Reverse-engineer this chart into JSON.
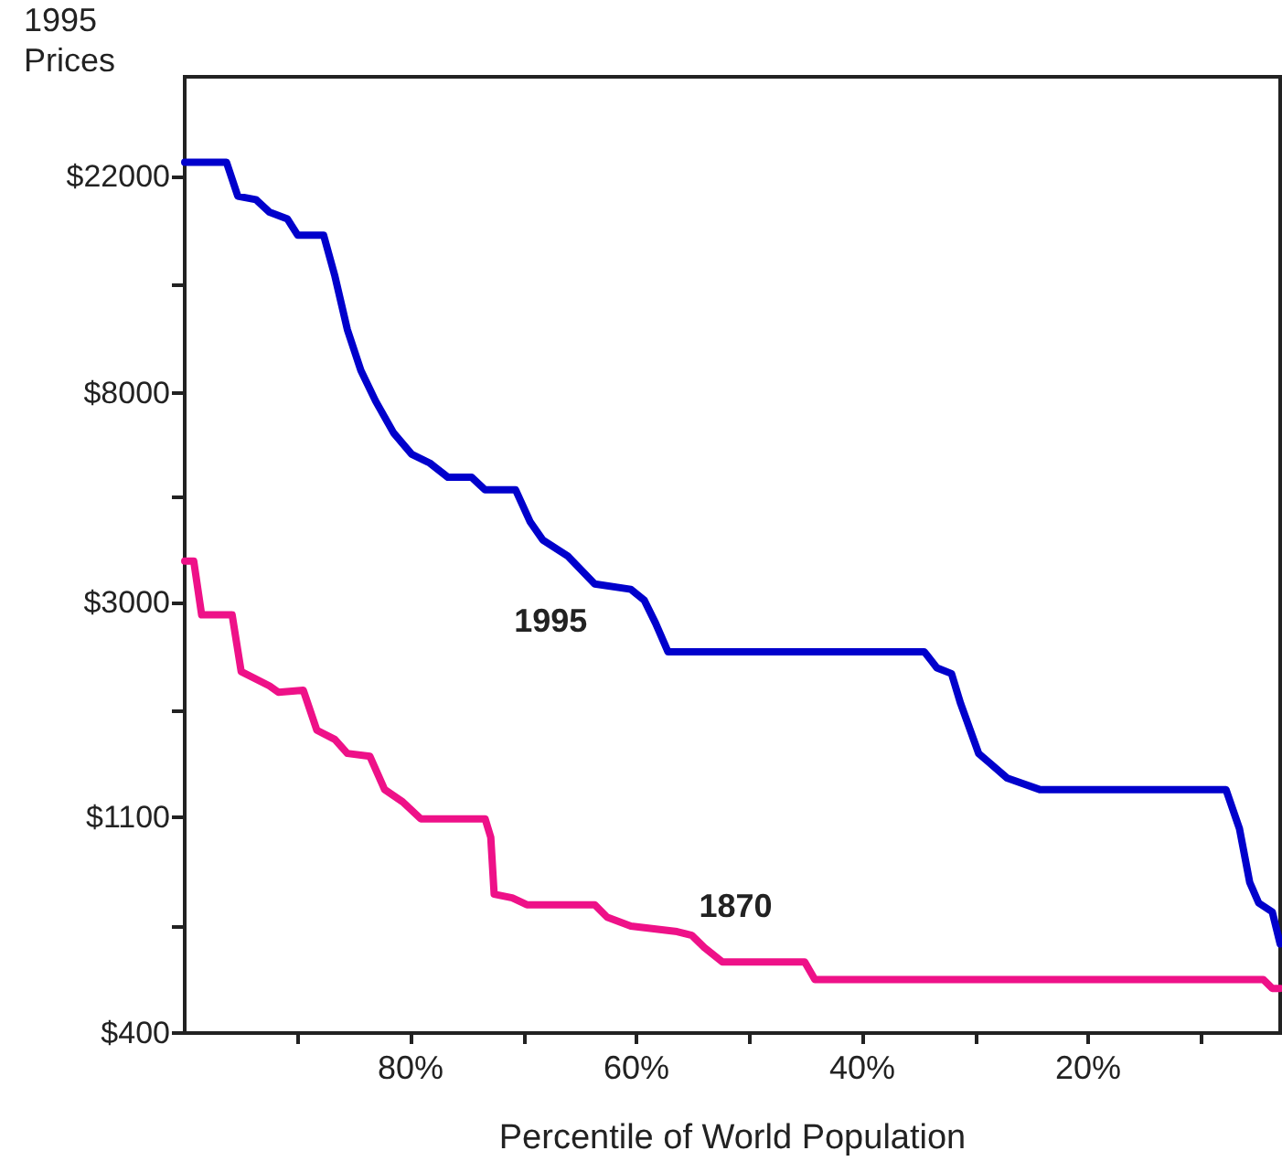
{
  "chart_data": {
    "type": "line",
    "xlabel": "Percentile of World Population",
    "ylabel": "1995\nPrices",
    "log": "y",
    "grid": false,
    "legend": false,
    "marker": "none",
    "line_style": "solid",
    "xlim": [
      100,
      3
    ],
    "ylim": [
      400,
      35100
    ],
    "xticks": [
      {
        "value": 90,
        "label": null
      },
      {
        "value": 80,
        "label": "80%"
      },
      {
        "value": 70,
        "label": null
      },
      {
        "value": 60,
        "label": "60%"
      },
      {
        "value": 50,
        "label": null
      },
      {
        "value": 40,
        "label": "40%"
      },
      {
        "value": 30,
        "label": null
      },
      {
        "value": 20,
        "label": "20%"
      },
      {
        "value": 10,
        "label": null
      }
    ],
    "yticks": [
      {
        "value": 400,
        "label": "$400"
      },
      {
        "value": 660,
        "label": null
      },
      {
        "value": 1100,
        "label": "$1100"
      },
      {
        "value": 1800,
        "label": null
      },
      {
        "value": 3000,
        "label": "$3000"
      },
      {
        "value": 4900,
        "label": null
      },
      {
        "value": 8000,
        "label": "$8000"
      },
      {
        "value": 13300,
        "label": null
      },
      {
        "value": 22000,
        "label": "$22000"
      }
    ],
    "series": [
      {
        "name": "1995",
        "color": "#0000cc",
        "x": [
          100,
          96.3,
          95.3,
          93.7,
          92.5,
          90.9,
          90.0,
          87.7,
          86.7,
          85.6,
          84.4,
          83.1,
          81.5,
          79.9,
          78.3,
          76.7,
          74.6,
          73.4,
          70.7,
          69.4,
          68.3,
          66.1,
          63.7,
          60.5,
          59.3,
          58.3,
          57.2,
          34.5,
          33.4,
          32.1,
          31.3,
          29.7,
          28.8,
          27.2,
          24.3,
          7.8,
          6.6,
          5.7,
          4.9,
          3.7,
          3
        ],
        "values": [
          23540,
          23540,
          20080,
          19760,
          18640,
          18040,
          16730,
          16730,
          13810,
          10760,
          8880,
          7700,
          6630,
          6000,
          5760,
          5390,
          5390,
          5080,
          5080,
          4370,
          4020,
          3730,
          3270,
          3190,
          3030,
          2720,
          2380,
          2380,
          2210,
          2150,
          1870,
          1480,
          1420,
          1320,
          1250,
          1250,
          1040,
          810,
          735,
          705,
          607
        ]
      },
      {
        "name": "1870",
        "color": "#ee1188",
        "x": [
          100,
          99.2,
          98.5,
          95.8,
          95.0,
          92.5,
          91.7,
          89.5,
          88.3,
          86.7,
          85.6,
          83.6,
          82.3,
          80.7,
          79.1,
          73.4,
          72.9,
          72.6,
          71.0,
          69.7,
          63.7,
          62.6,
          60.5,
          56.4,
          55.1,
          54.0,
          52.4,
          45.1,
          44.2,
          4.5,
          3.7,
          3
        ],
        "values": [
          3640,
          3640,
          2830,
          2830,
          2170,
          2030,
          1970,
          1990,
          1650,
          1580,
          1480,
          1460,
          1250,
          1180,
          1090,
          1090,
          1000,
          766,
          753,
          729,
          729,
          688,
          660,
          643,
          632,
          597,
          558,
          558,
          514,
          514,
          493,
          493
        ]
      }
    ]
  }
}
